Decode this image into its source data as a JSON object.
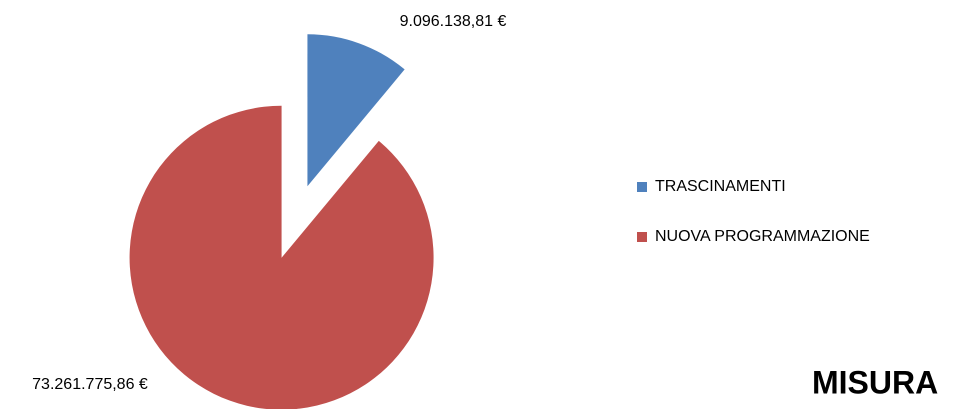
{
  "chart_data": {
    "type": "pie",
    "title": "MISURA",
    "categories": [
      "TRASCINAMENTI",
      "NUOVA PROGRAMMAZIONE"
    ],
    "values": [
      9096138.81,
      73261775.86
    ],
    "value_labels": [
      "9.096.138,81 €",
      "73.261.775,86 €"
    ],
    "colors": [
      "#4f81bd",
      "#c0504d"
    ],
    "legend": "right"
  }
}
